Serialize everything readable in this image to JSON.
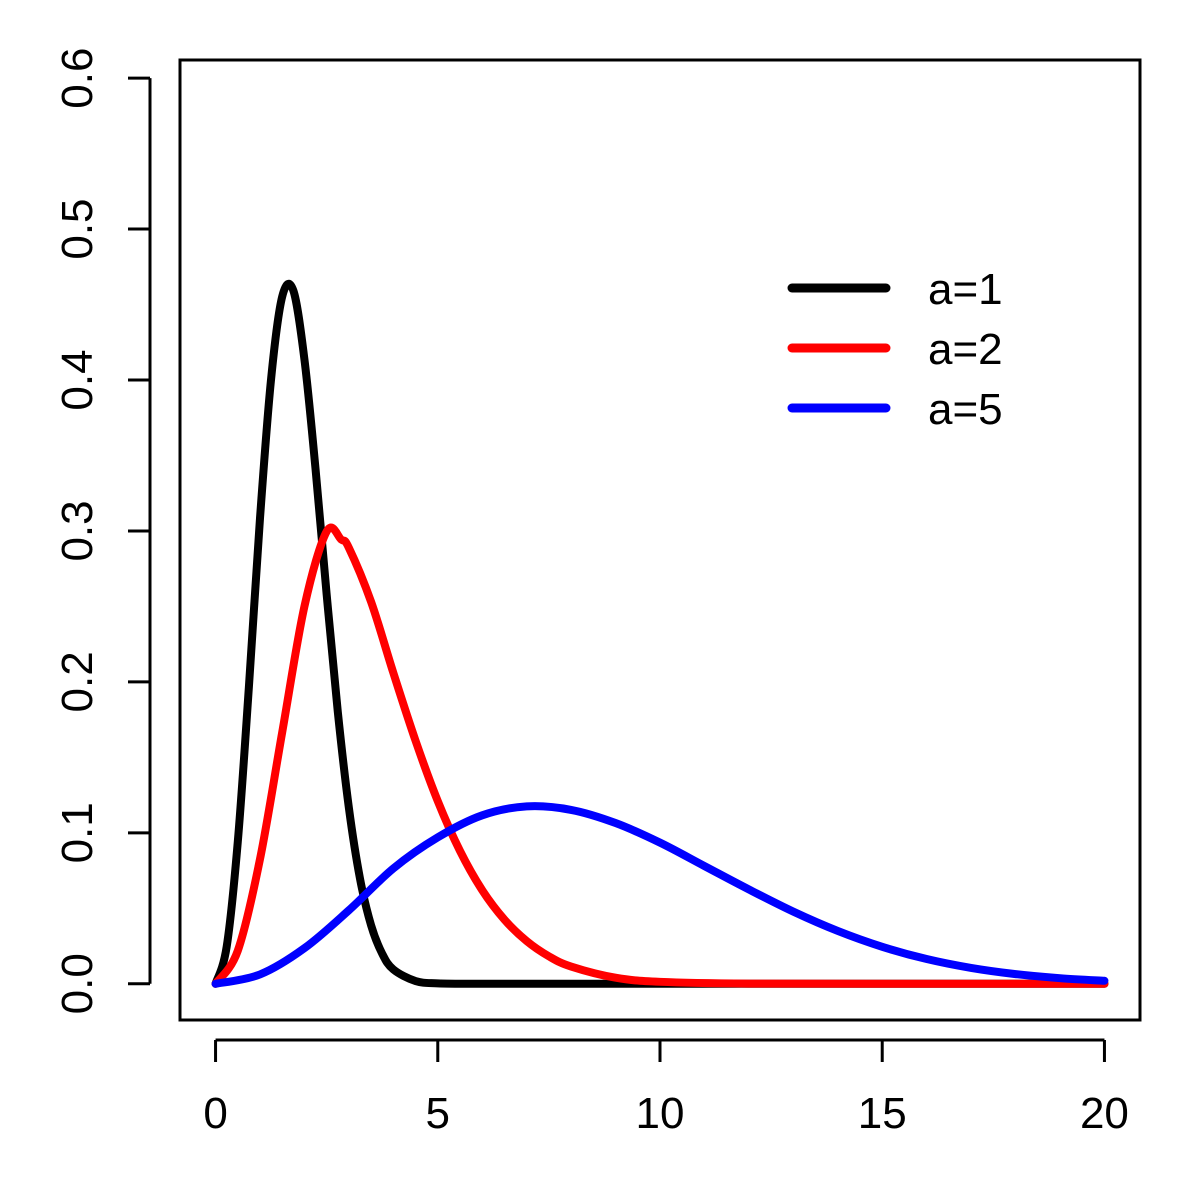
{
  "chart_data": {
    "type": "line",
    "title": "",
    "xlabel": "",
    "ylabel": "",
    "xlim": [
      -0.8,
      20.8
    ],
    "ylim": [
      -0.024,
      0.612
    ],
    "x_ticks": [
      0,
      5,
      10,
      15,
      20
    ],
    "x_tick_labels": [
      "0",
      "5",
      "10",
      "15",
      "20"
    ],
    "y_ticks": [
      0.0,
      0.1,
      0.2,
      0.3,
      0.4,
      0.5,
      0.6
    ],
    "y_tick_labels": [
      "0.0",
      "0.1",
      "0.2",
      "0.3",
      "0.4",
      "0.5",
      "0.6"
    ],
    "grid": false,
    "legend_position": "top-right",
    "series": [
      {
        "name": "a=1",
        "color": "#000000",
        "x": [
          0,
          0.25,
          0.5,
          0.75,
          1,
          1.25,
          1.5,
          1.75,
          2,
          2.25,
          2.5,
          2.75,
          3,
          3.25,
          3.5,
          3.75,
          4,
          4.5,
          5,
          6,
          8,
          10,
          15,
          20
        ],
        "y": [
          0,
          0.0245,
          0.094,
          0.1966,
          0.3084,
          0.4008,
          0.4553,
          0.4593,
          0.4136,
          0.3409,
          0.2578,
          0.1803,
          0.1165,
          0.0697,
          0.0387,
          0.0199,
          0.0095,
          0.0018,
          0.0003,
          0.0,
          0,
          0,
          0,
          0
        ]
      },
      {
        "name": "a=2",
        "color": "#ff0000",
        "x": [
          0,
          0.5,
          1,
          1.5,
          2,
          2.5,
          2.828,
          3,
          3.5,
          4,
          4.5,
          5,
          5.5,
          6,
          6.5,
          7,
          7.5,
          8,
          9,
          10,
          12,
          15,
          20
        ],
        "y": [
          0,
          0.0219,
          0.0826,
          0.1667,
          0.25,
          0.2997,
          0.2943,
          0.2888,
          0.253,
          0.206,
          0.161,
          0.121,
          0.088,
          0.062,
          0.0425,
          0.0283,
          0.0182,
          0.0114,
          0.004,
          0.0013,
          0.0001,
          0,
          0
        ]
      },
      {
        "name": "a=5",
        "color": "#0000ff",
        "x": [
          0,
          1,
          2,
          3,
          4,
          5,
          6,
          7,
          8,
          9,
          10,
          11,
          12,
          13,
          14,
          15,
          16,
          17,
          18,
          19,
          20
        ],
        "y": [
          0,
          0.0062,
          0.0236,
          0.0487,
          0.0764,
          0.097,
          0.1116,
          0.1175,
          0.1152,
          0.1065,
          0.0935,
          0.078,
          0.0625,
          0.0478,
          0.035,
          0.0245,
          0.0164,
          0.0105,
          0.0064,
          0.0037,
          0.002
        ]
      }
    ]
  }
}
